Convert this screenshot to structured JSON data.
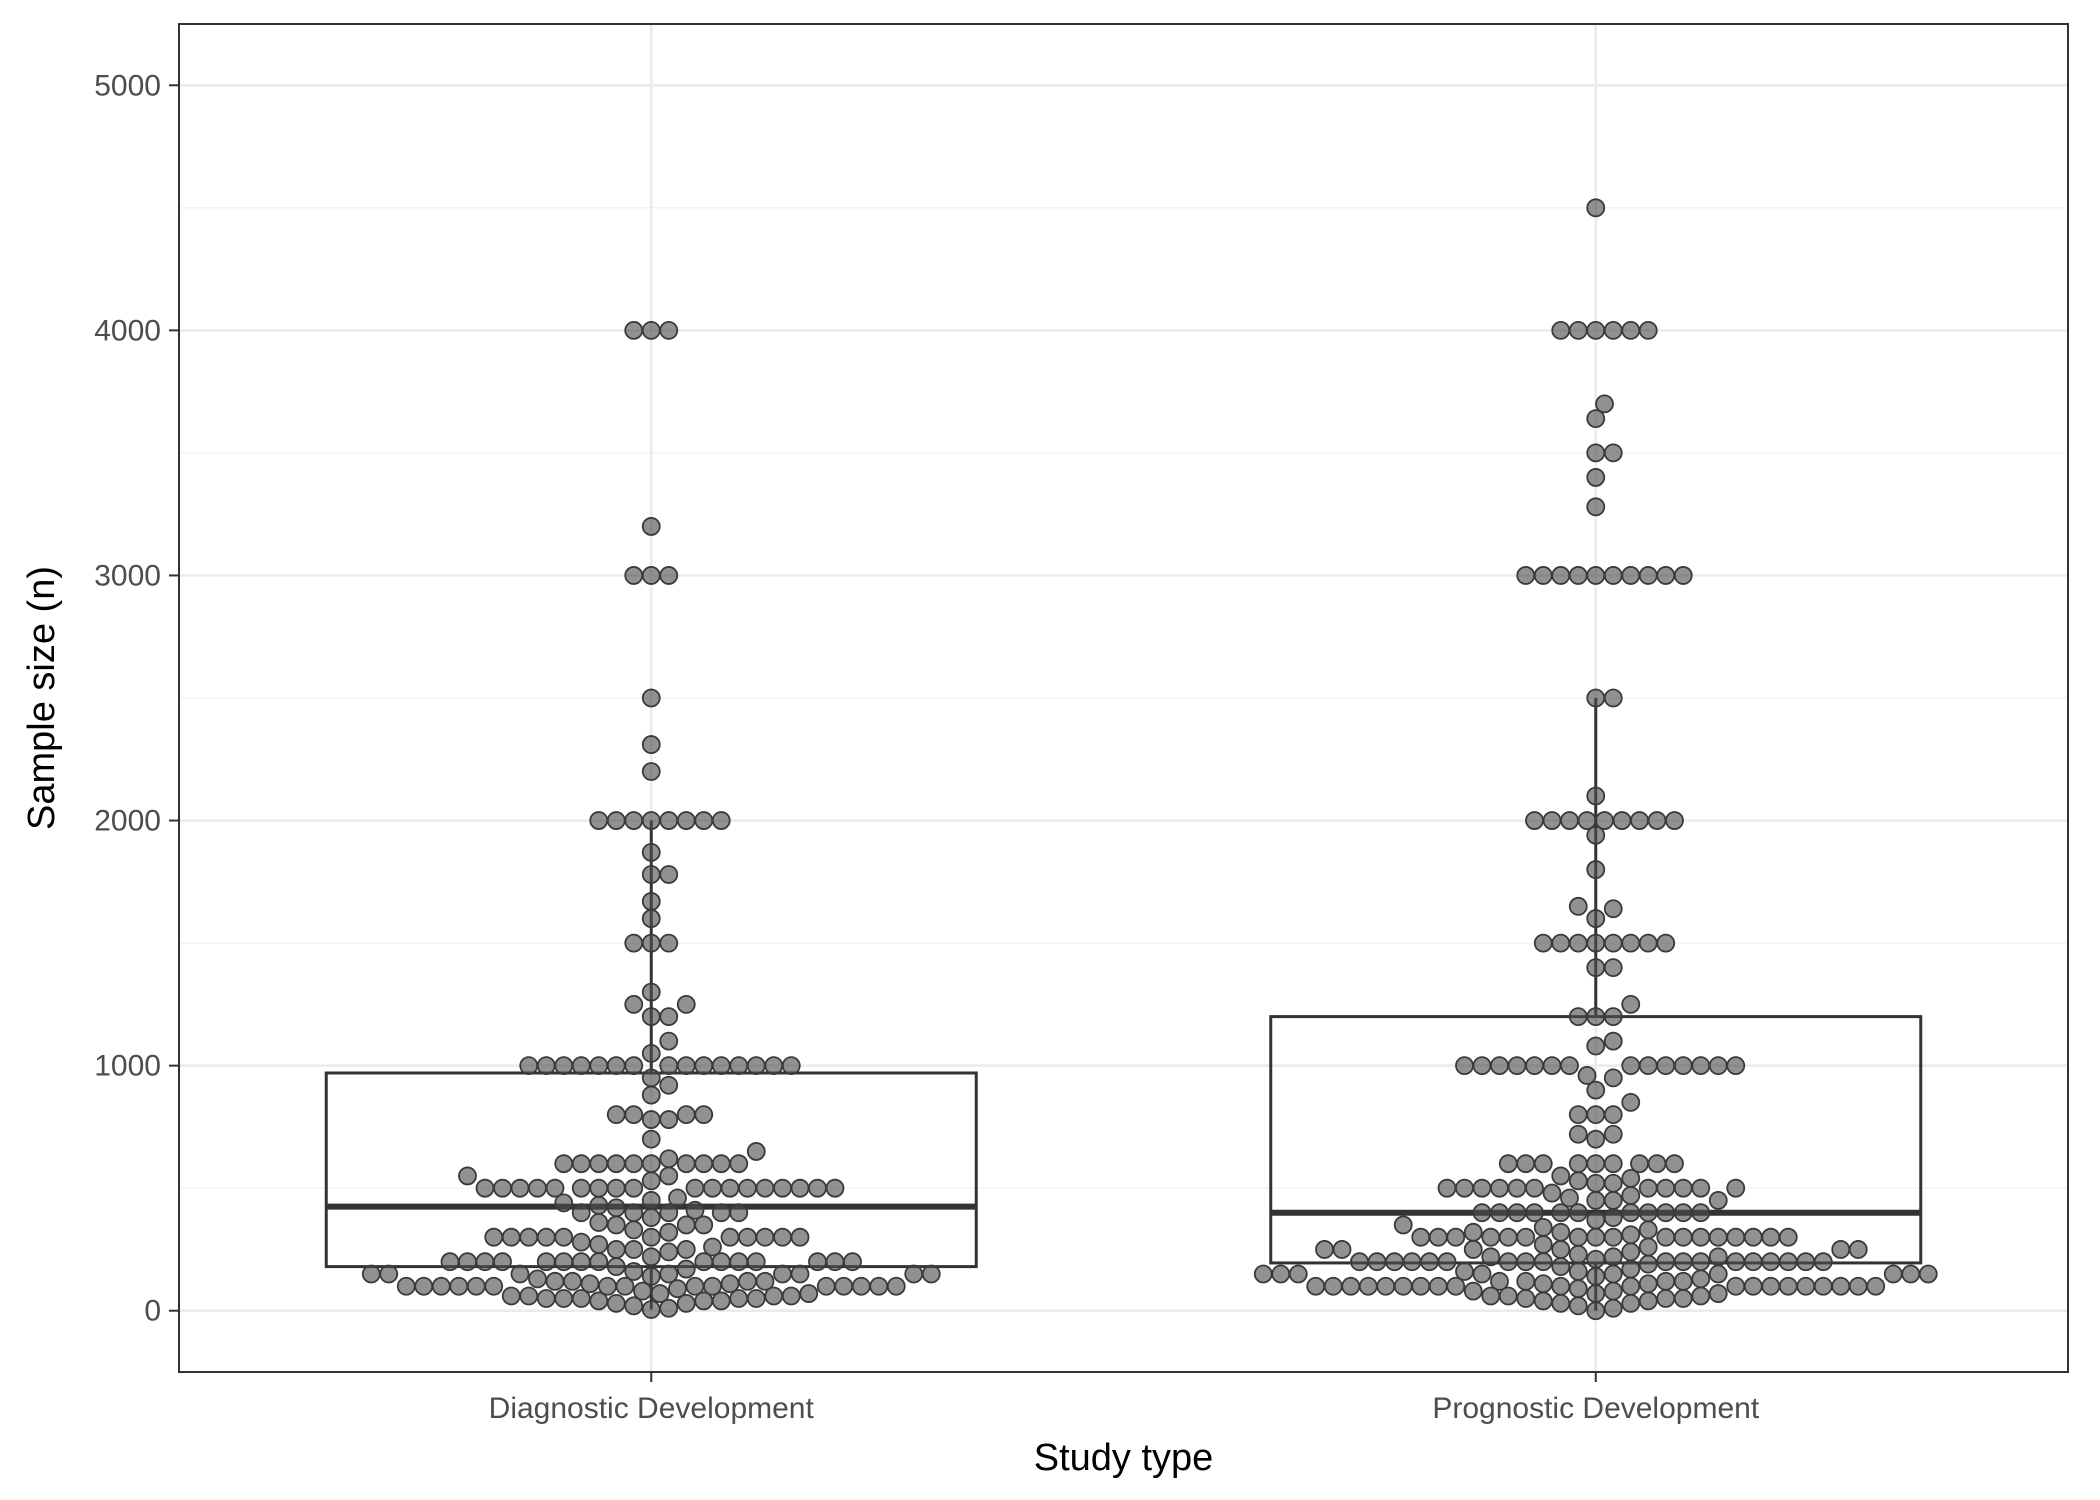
{
  "chart_data": {
    "type": "box",
    "xlabel": "Study type",
    "ylabel": "Sample size (n)",
    "categories": [
      "Diagnostic Development",
      "Prognostic Development"
    ],
    "ylim": [
      -250,
      5250
    ],
    "yticks": [
      0,
      1000,
      2000,
      3000,
      4000,
      5000
    ],
    "grid": true,
    "boxes": [
      {
        "category": "Diagnostic Development",
        "q1": 180,
        "median": 425,
        "q3": 970,
        "whisker_low": 5,
        "whisker_high": 2000
      },
      {
        "category": "Prognostic Development",
        "q1": 195,
        "median": 400,
        "q3": 1200,
        "whisker_low": 0,
        "whisker_high": 2500
      }
    ],
    "points": [
      {
        "category": "Diagnostic Development",
        "values": [
          4000,
          4000,
          4000,
          3200,
          3000,
          3000,
          3000,
          2500,
          2310,
          2200,
          2000,
          2000,
          2000,
          2000,
          2000,
          2000,
          2000,
          2000,
          1870,
          1780,
          1780,
          1670,
          1600,
          1500,
          1500,
          1500,
          1300,
          1250,
          1250,
          1200,
          1200,
          1100,
          1050,
          1000,
          1000,
          1000,
          1000,
          1000,
          1000,
          1000,
          1000,
          1000,
          1000,
          1000,
          1000,
          1000,
          1000,
          1000,
          950,
          920,
          880,
          800,
          800,
          800,
          800,
          780,
          780,
          700,
          650,
          620,
          600,
          600,
          600,
          600,
          600,
          600,
          600,
          600,
          600,
          600,
          550,
          550,
          530,
          500,
          500,
          500,
          500,
          500,
          500,
          500,
          500,
          500,
          500,
          500,
          500,
          500,
          500,
          500,
          500,
          500,
          500,
          460,
          450,
          440,
          430,
          420,
          410,
          400,
          400,
          400,
          400,
          400,
          380,
          360,
          350,
          350,
          350,
          330,
          320,
          300,
          300,
          300,
          300,
          300,
          300,
          300,
          300,
          300,
          300,
          300,
          280,
          270,
          260,
          250,
          250,
          250,
          240,
          220,
          200,
          200,
          200,
          200,
          200,
          200,
          200,
          200,
          200,
          200,
          200,
          200,
          200,
          200,
          200,
          180,
          170,
          160,
          150,
          150,
          150,
          150,
          150,
          150,
          150,
          150,
          140,
          130,
          120,
          120,
          120,
          120,
          110,
          110,
          100,
          100,
          100,
          100,
          100,
          100,
          100,
          100,
          100,
          100,
          100,
          100,
          100,
          100,
          100,
          90,
          80,
          70,
          70,
          60,
          60,
          60,
          60,
          50,
          50,
          50,
          50,
          50,
          40,
          40,
          40,
          30,
          30,
          20,
          10,
          5
        ]
      },
      {
        "category": "Prognostic Development",
        "values": [
          4500,
          4000,
          4000,
          4000,
          4000,
          4000,
          4000,
          3700,
          3640,
          3500,
          3500,
          3400,
          3280,
          3000,
          3000,
          3000,
          3000,
          3000,
          3000,
          3000,
          3000,
          3000,
          3000,
          2500,
          2500,
          2100,
          2000,
          2000,
          2000,
          2000,
          2000,
          2000,
          2000,
          2000,
          2000,
          1940,
          1800,
          1650,
          1640,
          1600,
          1500,
          1500,
          1500,
          1500,
          1500,
          1500,
          1500,
          1500,
          1400,
          1400,
          1250,
          1200,
          1200,
          1200,
          1100,
          1080,
          1000,
          1000,
          1000,
          1000,
          1000,
          1000,
          1000,
          1000,
          1000,
          1000,
          1000,
          1000,
          1000,
          1000,
          960,
          950,
          900,
          850,
          800,
          800,
          800,
          720,
          720,
          700,
          600,
          600,
          600,
          600,
          600,
          600,
          600,
          600,
          600,
          550,
          540,
          530,
          520,
          520,
          500,
          500,
          500,
          500,
          500,
          500,
          500,
          500,
          500,
          500,
          500,
          480,
          470,
          460,
          450,
          450,
          450,
          400,
          400,
          400,
          400,
          400,
          400,
          400,
          400,
          400,
          400,
          400,
          380,
          370,
          350,
          340,
          330,
          320,
          320,
          310,
          300,
          300,
          300,
          300,
          300,
          300,
          300,
          300,
          300,
          300,
          300,
          300,
          300,
          300,
          300,
          300,
          300,
          270,
          260,
          250,
          250,
          250,
          250,
          250,
          250,
          240,
          230,
          220,
          220,
          220,
          210,
          200,
          200,
          200,
          200,
          200,
          200,
          200,
          200,
          200,
          200,
          200,
          200,
          200,
          200,
          200,
          200,
          200,
          200,
          190,
          180,
          170,
          160,
          160,
          150,
          150,
          150,
          150,
          150,
          150,
          150,
          150,
          150,
          140,
          130,
          120,
          120,
          120,
          120,
          110,
          110,
          100,
          100,
          100,
          100,
          100,
          100,
          100,
          100,
          100,
          100,
          100,
          100,
          100,
          100,
          100,
          100,
          100,
          100,
          100,
          100,
          90,
          80,
          80,
          70,
          70,
          60,
          60,
          60,
          50,
          50,
          50,
          40,
          40,
          30,
          30,
          20,
          10,
          0
        ]
      }
    ]
  }
}
